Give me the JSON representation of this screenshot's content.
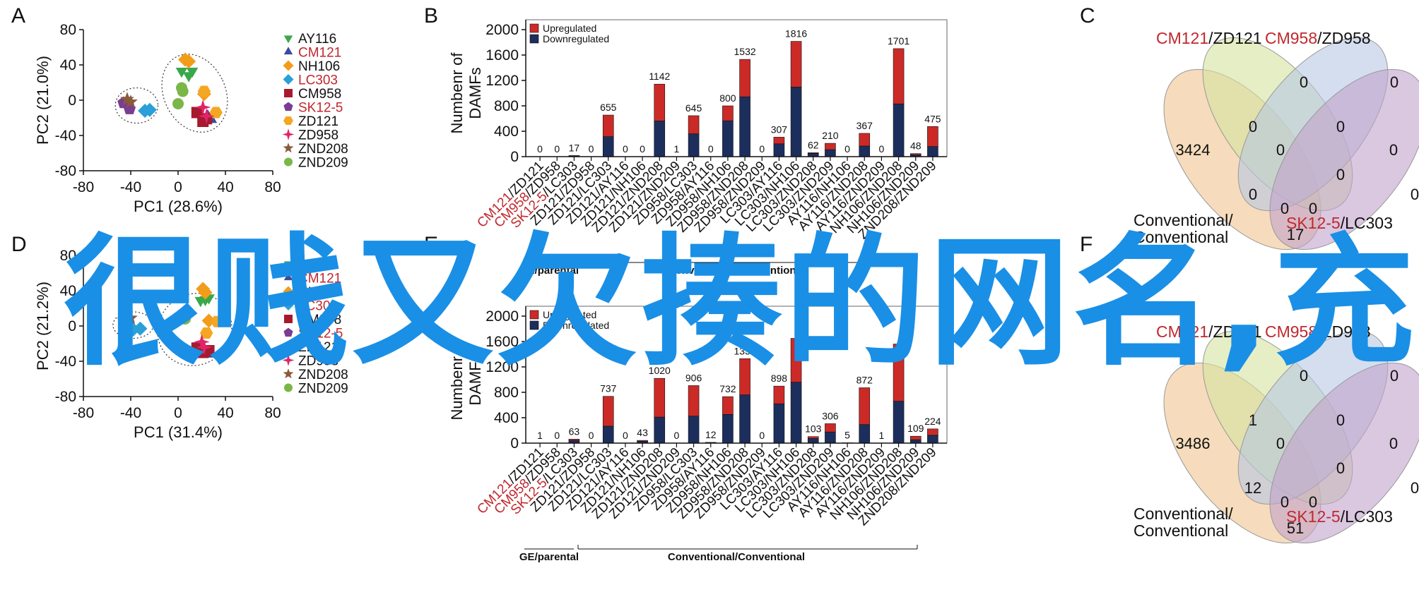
{
  "colors": {
    "upregulated": "#cc2a27",
    "downregulated": "#1c2e5c",
    "red_text": "#c0282d",
    "watermark": "#1a8fe6",
    "venn": [
      "#f0c48f",
      "#d5e3a0",
      "#b8c8e4",
      "#c2a2cc"
    ]
  },
  "watermark": "很贱又欠揍的网名,充",
  "legend_items": [
    {
      "label": "AY116",
      "color": "#3aa84a",
      "marker": "triangle-down",
      "red": false
    },
    {
      "label": "CM121",
      "color": "#3e4a9c",
      "marker": "triangle-up",
      "red": true
    },
    {
      "label": "NH106",
      "color": "#f39c1a",
      "marker": "diamond",
      "red": false
    },
    {
      "label": "LC303",
      "color": "#2a9fd8",
      "marker": "diamond",
      "red": true
    },
    {
      "label": "CM958",
      "color": "#a8192e",
      "marker": "square",
      "red": false
    },
    {
      "label": "SK12-5",
      "color": "#7a3d91",
      "marker": "pentagon",
      "red": true
    },
    {
      "label": "ZD121",
      "color": "#f5a623",
      "marker": "hexagon",
      "red": false
    },
    {
      "label": "ZD958",
      "color": "#e0246a",
      "marker": "star4",
      "red": false
    },
    {
      "label": "ZND208",
      "color": "#8a5a3c",
      "marker": "star5",
      "red": false
    },
    {
      "label": "ZND209",
      "color": "#7ab648",
      "marker": "circle",
      "red": false
    }
  ],
  "bar_legend": {
    "up": "Upregulated",
    "down": "Downregulated"
  },
  "categories": [
    [
      "CM121",
      "/ZD121",
      true
    ],
    [
      "CM958",
      "/ZD958",
      true
    ],
    [
      "SK12-5",
      "/LC303",
      true
    ],
    [
      "ZD121",
      "/ZD958",
      false
    ],
    [
      "ZD121",
      "/LC303",
      false
    ],
    [
      "ZD121",
      "/AY116",
      false
    ],
    [
      "ZD121",
      "/NH106",
      false
    ],
    [
      "ZD121",
      "/ZND208",
      false
    ],
    [
      "ZD121",
      "/ZND209",
      false
    ],
    [
      "ZD958",
      "/LC303",
      false
    ],
    [
      "ZD958",
      "/AY116",
      false
    ],
    [
      "ZD958",
      "/NH106",
      false
    ],
    [
      "ZD958",
      "/ZND208",
      false
    ],
    [
      "ZD958",
      "/ZND209",
      false
    ],
    [
      "LC303",
      "/AY116",
      false
    ],
    [
      "LC303",
      "/NH106",
      false
    ],
    [
      "LC303",
      "/ZND208",
      false
    ],
    [
      "LC303",
      "/ZND209",
      false
    ],
    [
      "AY116",
      "/NH106",
      false
    ],
    [
      "AY116",
      "/ZND208",
      false
    ],
    [
      "AY116",
      "/ZND209",
      false
    ],
    [
      "NH106",
      "/ZND208",
      false
    ],
    [
      "NH106",
      "/ZND209",
      false
    ],
    [
      "ZND208",
      "/ZND209",
      false
    ]
  ],
  "chart_data": [
    {
      "panel": "A",
      "type": "scatter",
      "xlabel": "PC1 (28.6%)",
      "ylabel": "PC2 (21.0%)",
      "xlim": [
        -80,
        80
      ],
      "ylim": [
        -80,
        80
      ],
      "xticks": [
        "-80",
        "-40",
        "0",
        "40",
        "80"
      ],
      "yticks": [
        "-80",
        "-40",
        "0",
        "40",
        "80"
      ],
      "points": [
        {
          "s": 0,
          "x": 3,
          "y": 33
        },
        {
          "s": 0,
          "x": 9,
          "y": 28
        },
        {
          "s": 0,
          "x": 12,
          "y": 33
        },
        {
          "s": 1,
          "x": 25,
          "y": -18
        },
        {
          "s": 1,
          "x": 28,
          "y": -22
        },
        {
          "s": 2,
          "x": 6,
          "y": 46
        },
        {
          "s": 2,
          "x": 9,
          "y": 44
        },
        {
          "s": 2,
          "x": 22,
          "y": 7
        },
        {
          "s": 3,
          "x": -28,
          "y": -12
        },
        {
          "s": 3,
          "x": -24,
          "y": -11
        },
        {
          "s": 4,
          "x": 16,
          "y": -14
        },
        {
          "s": 4,
          "x": 21,
          "y": -24
        },
        {
          "s": 4,
          "x": 24,
          "y": -21
        },
        {
          "s": 5,
          "x": -46,
          "y": -3
        },
        {
          "s": 5,
          "x": -41,
          "y": -10
        },
        {
          "s": 6,
          "x": 22,
          "y": 10
        },
        {
          "s": 6,
          "x": 32,
          "y": -14
        },
        {
          "s": 7,
          "x": 21,
          "y": -8
        },
        {
          "s": 7,
          "x": 24,
          "y": -18
        },
        {
          "s": 8,
          "x": -43,
          "y": 1
        },
        {
          "s": 8,
          "x": -40,
          "y": -2
        },
        {
          "s": 9,
          "x": 4,
          "y": 10
        },
        {
          "s": 9,
          "x": 0,
          "y": -4
        },
        {
          "s": 9,
          "x": 3,
          "y": 14
        }
      ],
      "ellipses": [
        {
          "cx": -35,
          "cy": -6,
          "rx": 18,
          "ry": 20,
          "rot": 0
        },
        {
          "cx": 14,
          "cy": 8,
          "rx": 26,
          "ry": 46,
          "rot": -25
        }
      ]
    },
    {
      "panel": "B",
      "type": "bar",
      "stacked": true,
      "ylabel": "Numbenr of DAMFs",
      "ylim": [
        0,
        2000
      ],
      "yticks": [
        "0",
        "400",
        "800",
        "1200",
        "1600",
        "2000"
      ],
      "series": [
        {
          "name": "Upregulated",
          "values": [
            0,
            0,
            3,
            0,
            340,
            0,
            0,
            580,
            1,
            285,
            0,
            235,
            590,
            0,
            105,
            720,
            10,
            100,
            0,
            200,
            0,
            870,
            18,
            315
          ]
        },
        {
          "name": "Downregulated",
          "values": [
            0,
            0,
            14,
            0,
            315,
            0,
            0,
            562,
            0,
            360,
            0,
            565,
            942,
            0,
            202,
            1096,
            52,
            110,
            0,
            167,
            0,
            831,
            30,
            160
          ]
        }
      ],
      "totals": [
        0,
        0,
        17,
        0,
        655,
        0,
        0,
        1142,
        1,
        645,
        0,
        800,
        1532,
        0,
        307,
        1816,
        62,
        210,
        0,
        367,
        0,
        1701,
        48,
        475
      ],
      "group_labels": [
        "GE/parental",
        "Conventional/Conventional"
      ]
    },
    {
      "panel": "C",
      "type": "venn",
      "set_labels": [
        [
          "CM121",
          "/ZD121"
        ],
        [
          "CM958",
          "/ZD958"
        ],
        [
          "Conventional/",
          "Conventional"
        ],
        [
          "SK12-5",
          "/LC303"
        ]
      ],
      "values": [
        "0",
        "0",
        "0",
        "0",
        "0",
        "3424",
        "0",
        "0",
        "0",
        "0",
        "0",
        "0",
        "0",
        "0",
        "17"
      ]
    },
    {
      "panel": "D",
      "type": "scatter",
      "xlabel": "PC1 (31.4%)",
      "ylabel": "PC2 (21.2%)",
      "xlim": [
        -80,
        80
      ],
      "ylim": [
        -80,
        80
      ],
      "xticks": [
        "-80",
        "-40",
        "0",
        "40",
        "80"
      ],
      "yticks": [
        "-80",
        "-40",
        "0",
        "40",
        "80"
      ],
      "points": [
        {
          "s": 0,
          "x": 19,
          "y": 29
        },
        {
          "s": 0,
          "x": 23,
          "y": 30
        },
        {
          "s": 0,
          "x": 26,
          "y": 32
        },
        {
          "s": 1,
          "x": 24,
          "y": -30
        },
        {
          "s": 1,
          "x": 27,
          "y": -32
        },
        {
          "s": 2,
          "x": 21,
          "y": 42
        },
        {
          "s": 2,
          "x": 23,
          "y": 38
        },
        {
          "s": 2,
          "x": 26,
          "y": 6
        },
        {
          "s": 3,
          "x": -38,
          "y": -4
        },
        {
          "s": 3,
          "x": -32,
          "y": -3
        },
        {
          "s": 4,
          "x": 16,
          "y": -25
        },
        {
          "s": 4,
          "x": 21,
          "y": -30
        },
        {
          "s": 4,
          "x": 26,
          "y": -28
        },
        {
          "s": 5,
          "x": -46,
          "y": 7
        },
        {
          "s": 5,
          "x": -43,
          "y": 3
        },
        {
          "s": 6,
          "x": 33,
          "y": 5
        },
        {
          "s": 6,
          "x": 24,
          "y": -8
        },
        {
          "s": 7,
          "x": 20,
          "y": -18
        },
        {
          "s": 7,
          "x": 22,
          "y": -24
        },
        {
          "s": 8,
          "x": -45,
          "y": 6
        },
        {
          "s": 8,
          "x": -40,
          "y": 9
        },
        {
          "s": 9,
          "x": -10,
          "y": -2
        },
        {
          "s": 9,
          "x": 4,
          "y": 10
        },
        {
          "s": 9,
          "x": 6,
          "y": 8
        }
      ],
      "ellipses": [
        {
          "cx": -38,
          "cy": 1,
          "rx": 17,
          "ry": 15,
          "rot": 0
        },
        {
          "cx": 14,
          "cy": -4,
          "rx": 32,
          "ry": 40,
          "rot": -35
        }
      ]
    },
    {
      "panel": "E",
      "type": "bar",
      "stacked": true,
      "ylabel": "Numbenr of DAMFs",
      "ylim": [
        0,
        2000
      ],
      "yticks": [
        "0",
        "400",
        "800",
        "1200",
        "1600",
        "2000"
      ],
      "series": [
        {
          "name": "Upregulated",
          "values": [
            0,
            0,
            20,
            0,
            470,
            0,
            13,
            610,
            0,
            480,
            4,
            280,
            570,
            0,
            280,
            690,
            30,
            130,
            2,
            580,
            0,
            900,
            55,
            100
          ]
        },
        {
          "name": "Downregulated",
          "values": [
            1,
            0,
            43,
            0,
            267,
            0,
            30,
            410,
            0,
            426,
            8,
            452,
            760,
            0,
            618,
            960,
            73,
            176,
            3,
            292,
            1,
            660,
            54,
            124
          ]
        }
      ],
      "totals": [
        1,
        0,
        63,
        0,
        737,
        0,
        43,
        1020,
        0,
        906,
        12,
        732,
        1330,
        0,
        898,
        1650,
        103,
        306,
        5,
        872,
        1,
        1560,
        109,
        224
      ],
      "visible_totals": [
        "1",
        "0",
        "63",
        "0",
        "737",
        "0",
        "43",
        "1020",
        "0",
        "906",
        "12",
        "732",
        "1330",
        "0",
        "898",
        "",
        "103",
        "306",
        "5",
        "872",
        "1",
        "",
        "109",
        "224"
      ],
      "group_labels": [
        "GE/parental",
        "Conventional/Conventional"
      ]
    },
    {
      "panel": "F",
      "type": "venn",
      "set_labels": [
        [
          "CM121",
          "/ZD121"
        ],
        [
          "CM958",
          "/ZD958"
        ],
        [
          "Conventional/",
          "Conventional"
        ],
        [
          "SK12-5",
          "/LC303"
        ]
      ],
      "values": [
        "0",
        "0",
        "1",
        "0",
        "0",
        "3486",
        "0",
        "0",
        "0",
        "0",
        "12",
        "0",
        "0",
        "0",
        "51"
      ]
    }
  ]
}
